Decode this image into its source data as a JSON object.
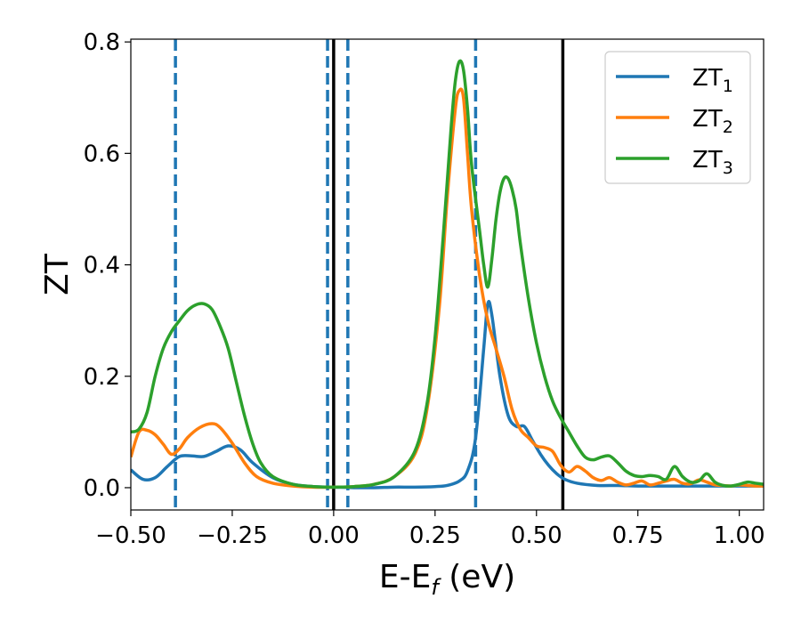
{
  "chart_data": {
    "type": "line",
    "xlabel": "E-E",
    "xlabel_sub": "f",
    "xlabel_unit": " (eV)",
    "ylabel": "ZT",
    "xlim": [
      -0.5,
      1.06
    ],
    "ylim": [
      -0.04,
      0.805
    ],
    "xticks": [
      -0.5,
      -0.25,
      0.0,
      0.25,
      0.5,
      0.75,
      1.0
    ],
    "xtick_labels": [
      "−0.50",
      "−0.25",
      "0.00",
      "0.25",
      "0.50",
      "0.75",
      "1.00"
    ],
    "yticks": [
      0.0,
      0.2,
      0.4,
      0.6,
      0.8
    ],
    "ytick_labels": [
      "0.0",
      "0.2",
      "0.4",
      "0.6",
      "0.8"
    ],
    "legend_position": "top-right",
    "grid": false,
    "vlines_solid": [
      0.0,
      0.565
    ],
    "vlines_dashed": [
      -0.39,
      -0.015,
      0.035,
      0.35
    ],
    "vline_solid_color": "#000000",
    "vline_dashed_color": "#1f77b4",
    "series": [
      {
        "name": "ZT",
        "name_sub": "1",
        "color": "#1f77b4",
        "x": [
          -0.5,
          -0.47,
          -0.44,
          -0.41,
          -0.38,
          -0.35,
          -0.32,
          -0.29,
          -0.26,
          -0.23,
          -0.2,
          -0.15,
          -0.1,
          -0.05,
          0.0,
          0.05,
          0.1,
          0.15,
          0.2,
          0.25,
          0.28,
          0.31,
          0.33,
          0.35,
          0.37,
          0.38,
          0.39,
          0.41,
          0.43,
          0.45,
          0.47,
          0.49,
          0.51,
          0.53,
          0.55,
          0.57,
          0.6,
          0.65,
          0.7,
          0.75,
          0.8,
          0.85,
          0.9,
          0.95,
          1.0,
          1.06
        ],
        "y": [
          0.032,
          0.015,
          0.018,
          0.038,
          0.056,
          0.057,
          0.056,
          0.065,
          0.075,
          0.068,
          0.045,
          0.018,
          0.006,
          0.002,
          0.001,
          0.0,
          0.0,
          0.001,
          0.001,
          0.002,
          0.004,
          0.012,
          0.03,
          0.09,
          0.25,
          0.33,
          0.31,
          0.2,
          0.13,
          0.11,
          0.11,
          0.085,
          0.06,
          0.04,
          0.025,
          0.015,
          0.008,
          0.004,
          0.004,
          0.003,
          0.003,
          0.003,
          0.003,
          0.003,
          0.003,
          0.003
        ]
      },
      {
        "name": "ZT",
        "name_sub": "2",
        "color": "#ff7f0e",
        "x": [
          -0.5,
          -0.48,
          -0.46,
          -0.44,
          -0.42,
          -0.4,
          -0.38,
          -0.36,
          -0.33,
          -0.3,
          -0.28,
          -0.25,
          -0.22,
          -0.19,
          -0.15,
          -0.1,
          -0.05,
          0.0,
          0.05,
          0.1,
          0.15,
          0.2,
          0.23,
          0.26,
          0.28,
          0.3,
          0.31,
          0.32,
          0.33,
          0.34,
          0.36,
          0.38,
          0.4,
          0.42,
          0.44,
          0.46,
          0.48,
          0.5,
          0.52,
          0.54,
          0.56,
          0.58,
          0.6,
          0.62,
          0.64,
          0.66,
          0.68,
          0.7,
          0.72,
          0.74,
          0.76,
          0.78,
          0.8,
          0.82,
          0.84,
          0.86,
          0.88,
          0.9,
          0.92,
          0.94,
          0.96,
          0.98,
          1.0,
          1.02,
          1.04,
          1.06
        ],
        "y": [
          0.055,
          0.1,
          0.103,
          0.095,
          0.078,
          0.06,
          0.07,
          0.09,
          0.108,
          0.115,
          0.108,
          0.08,
          0.045,
          0.02,
          0.008,
          0.003,
          0.001,
          0.001,
          0.002,
          0.006,
          0.02,
          0.06,
          0.14,
          0.32,
          0.52,
          0.68,
          0.713,
          0.7,
          0.6,
          0.5,
          0.38,
          0.3,
          0.25,
          0.2,
          0.14,
          0.105,
          0.09,
          0.075,
          0.072,
          0.065,
          0.04,
          0.028,
          0.038,
          0.03,
          0.018,
          0.013,
          0.018,
          0.01,
          0.005,
          0.008,
          0.012,
          0.005,
          0.008,
          0.012,
          0.015,
          0.008,
          0.007,
          0.014,
          0.01,
          0.005,
          0.004,
          0.003,
          0.005,
          0.004,
          0.003,
          0.003
        ]
      },
      {
        "name": "ZT",
        "name_sub": "3",
        "color": "#2ca02c",
        "x": [
          -0.5,
          -0.48,
          -0.46,
          -0.44,
          -0.42,
          -0.4,
          -0.38,
          -0.36,
          -0.34,
          -0.32,
          -0.3,
          -0.28,
          -0.26,
          -0.24,
          -0.22,
          -0.2,
          -0.18,
          -0.15,
          -0.1,
          -0.05,
          0.0,
          0.05,
          0.1,
          0.15,
          0.2,
          0.23,
          0.25,
          0.27,
          0.29,
          0.3,
          0.31,
          0.32,
          0.33,
          0.34,
          0.36,
          0.37,
          0.38,
          0.39,
          0.4,
          0.41,
          0.42,
          0.43,
          0.44,
          0.45,
          0.46,
          0.48,
          0.5,
          0.52,
          0.54,
          0.56,
          0.58,
          0.6,
          0.62,
          0.64,
          0.66,
          0.68,
          0.7,
          0.72,
          0.74,
          0.76,
          0.78,
          0.8,
          0.82,
          0.84,
          0.86,
          0.88,
          0.9,
          0.92,
          0.94,
          0.96,
          0.98,
          1.0,
          1.02,
          1.04,
          1.06
        ],
        "y": [
          0.1,
          0.105,
          0.135,
          0.2,
          0.25,
          0.28,
          0.3,
          0.318,
          0.328,
          0.33,
          0.32,
          0.29,
          0.25,
          0.19,
          0.13,
          0.08,
          0.045,
          0.02,
          0.006,
          0.002,
          0.001,
          0.002,
          0.006,
          0.02,
          0.065,
          0.15,
          0.27,
          0.45,
          0.65,
          0.73,
          0.765,
          0.75,
          0.68,
          0.58,
          0.46,
          0.4,
          0.36,
          0.41,
          0.48,
          0.53,
          0.555,
          0.555,
          0.535,
          0.5,
          0.44,
          0.34,
          0.26,
          0.2,
          0.155,
          0.125,
          0.1,
          0.075,
          0.055,
          0.05,
          0.055,
          0.057,
          0.045,
          0.03,
          0.022,
          0.02,
          0.022,
          0.02,
          0.015,
          0.038,
          0.02,
          0.01,
          0.012,
          0.025,
          0.01,
          0.004,
          0.003,
          0.006,
          0.01,
          0.008,
          0.006
        ]
      }
    ]
  }
}
